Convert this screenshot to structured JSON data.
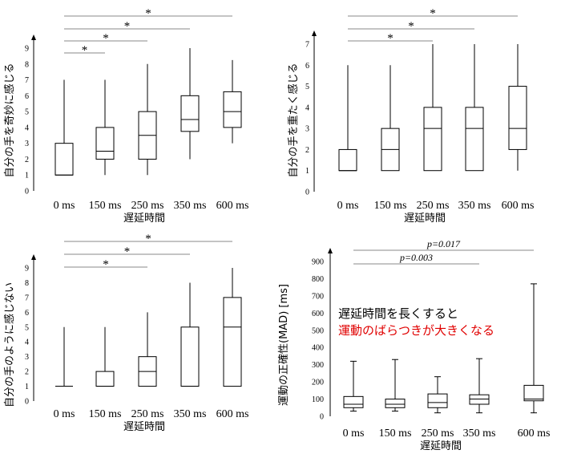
{
  "chart_data": [
    {
      "type": "box",
      "categories": [
        "0 ms",
        "150 ms",
        "250 ms",
        "350 ms",
        "600 ms"
      ],
      "xlabel": "遅延時間",
      "ylabel": "自分の手を奇妙に感じる",
      "ylim": [
        0,
        9
      ],
      "yticks": [
        0,
        1,
        2,
        3,
        4,
        5,
        6,
        7,
        8,
        9
      ],
      "boxes": [
        {
          "min": 1,
          "q1": 1,
          "median": 1,
          "q3": 3,
          "max": 7
        },
        {
          "min": 1,
          "q1": 2,
          "median": 2.5,
          "q3": 4,
          "max": 7
        },
        {
          "min": 1,
          "q1": 2,
          "median": 3.5,
          "q3": 5,
          "max": 8
        },
        {
          "min": 2,
          "q1": 3.75,
          "median": 4.5,
          "q3": 6,
          "max": 9
        },
        {
          "min": 3,
          "q1": 4,
          "median": 5,
          "q3": 6.25,
          "max": 8.25
        }
      ],
      "comparisons": [
        {
          "from": 0,
          "to": 1,
          "label": "*"
        },
        {
          "from": 0,
          "to": 2,
          "label": "*"
        },
        {
          "from": 0,
          "to": 3,
          "label": "*"
        },
        {
          "from": 0,
          "to": 4,
          "label": "*"
        }
      ]
    },
    {
      "type": "box",
      "categories": [
        "0 ms",
        "150 ms",
        "250 ms",
        "350 ms",
        "600 ms"
      ],
      "xlabel": "遅延時間",
      "ylabel": "自分の手を重たく感じる",
      "ylim": [
        0,
        7
      ],
      "yticks": [
        0,
        1,
        2,
        3,
        4,
        5,
        6,
        7
      ],
      "boxes": [
        {
          "min": 1,
          "q1": 1,
          "median": 1,
          "q3": 2,
          "max": 6
        },
        {
          "min": 1,
          "q1": 1,
          "median": 2,
          "q3": 3,
          "max": 6
        },
        {
          "min": 1,
          "q1": 1,
          "median": 3,
          "q3": 4,
          "max": 7
        },
        {
          "min": 1,
          "q1": 1,
          "median": 3,
          "q3": 4,
          "max": 7
        },
        {
          "min": 1,
          "q1": 2,
          "median": 3,
          "q3": 5,
          "max": 7
        }
      ],
      "comparisons": [
        {
          "from": 0,
          "to": 2,
          "label": "*"
        },
        {
          "from": 0,
          "to": 3,
          "label": "*"
        },
        {
          "from": 0,
          "to": 4,
          "label": "*"
        }
      ]
    },
    {
      "type": "box",
      "categories": [
        "0 ms",
        "150 ms",
        "250 ms",
        "350 ms",
        "600 ms"
      ],
      "xlabel": "遅延時間",
      "ylabel": "自分の手のように感じない",
      "ylim": [
        0,
        9
      ],
      "yticks": [
        0,
        1,
        2,
        3,
        4,
        5,
        6,
        7,
        8,
        9
      ],
      "boxes": [
        {
          "min": 1,
          "q1": 1,
          "median": 1,
          "q3": 1,
          "max": 5
        },
        {
          "min": 1,
          "q1": 1,
          "median": 1,
          "q3": 2,
          "max": 5
        },
        {
          "min": 1,
          "q1": 1,
          "median": 2,
          "q3": 3,
          "max": 6
        },
        {
          "min": 1,
          "q1": 1,
          "median": 1,
          "q3": 5,
          "max": 8
        },
        {
          "min": 1,
          "q1": 1,
          "median": 5,
          "q3": 7,
          "max": 9
        }
      ],
      "comparisons": [
        {
          "from": 0,
          "to": 2,
          "label": "*"
        },
        {
          "from": 0,
          "to": 3,
          "label": "*"
        },
        {
          "from": 0,
          "to": 4,
          "label": "*"
        }
      ]
    },
    {
      "type": "box",
      "categories": [
        "0 ms",
        "150 ms",
        "250 ms",
        "350 ms",
        "600 ms"
      ],
      "xlabel": "遅延時間",
      "ylabel": "運動の正確性(MAD) [ms]",
      "ylim": [
        0,
        900
      ],
      "yticks": [
        0,
        100,
        200,
        300,
        400,
        500,
        600,
        700,
        800,
        900
      ],
      "boxes": [
        {
          "min": 30,
          "q1": 50,
          "median": 70,
          "q3": 115,
          "max": 320
        },
        {
          "min": 30,
          "q1": 50,
          "median": 70,
          "q3": 100,
          "max": 330
        },
        {
          "min": 20,
          "q1": 50,
          "median": 80,
          "q3": 130,
          "max": 230
        },
        {
          "min": 20,
          "q1": 70,
          "median": 100,
          "q3": 125,
          "max": 335
        },
        {
          "min": 20,
          "q1": 90,
          "median": 100,
          "q3": 180,
          "max": 770
        }
      ],
      "comparisons": [
        {
          "from": 0,
          "to": 3,
          "label": "p=0.003"
        },
        {
          "from": 0,
          "to": 4,
          "label": "p=0.017"
        }
      ],
      "annotation": [
        "遅延時間を長くすると",
        "運動のばらつきが大きくなる"
      ],
      "annotation_colors": [
        "#000000",
        "#e00000"
      ]
    }
  ]
}
